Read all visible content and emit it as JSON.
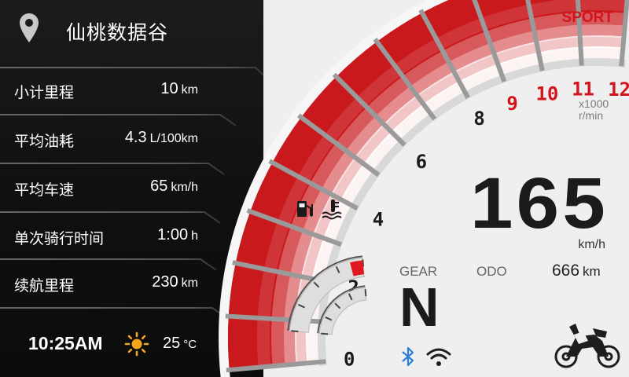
{
  "location": {
    "name": "仙桃数据谷",
    "icon": "map-pin-icon"
  },
  "stats": [
    {
      "label": "小计里程",
      "value": "10",
      "unit": "km"
    },
    {
      "label": "平均油耗",
      "value": "4.3",
      "unit": "L/100km"
    },
    {
      "label": "平均车速",
      "value": "65",
      "unit": "km/h"
    },
    {
      "label": "单次骑行时间",
      "value": "1:00",
      "unit": "h"
    },
    {
      "label": "续航里程",
      "value": "230",
      "unit": "km"
    }
  ],
  "status": {
    "time": "10:25AM",
    "weather_icon": "sun-icon",
    "temperature": "25",
    "temperature_unit": "°C"
  },
  "ride_mode": "SPORT",
  "tachometer": {
    "unit_line1": "x1000",
    "unit_line2": "r/min",
    "ticks": [
      "0",
      "2",
      "4",
      "6",
      "8",
      "9",
      "10",
      "11",
      "12"
    ],
    "redline_from": 9
  },
  "speed": {
    "value": "165",
    "unit": "km/h"
  },
  "gear": {
    "label": "GEAR",
    "value": "N"
  },
  "odometer": {
    "label": "ODO",
    "value": "666",
    "unit": "km"
  },
  "fuel_level": 0.12,
  "coolant_level": 0.0,
  "icons": [
    "fuel-pump-icon",
    "coolant-temp-icon",
    "bluetooth-icon",
    "wifi-icon",
    "motorcycle-icon"
  ],
  "colors": {
    "accent": "#d4141c",
    "panel": "#141414",
    "background": "#efefef"
  }
}
